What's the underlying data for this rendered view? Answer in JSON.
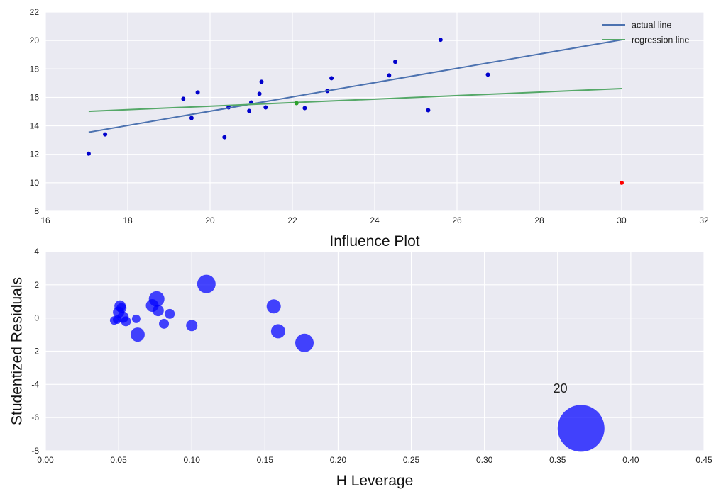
{
  "chart_data": [
    {
      "type": "scatter",
      "title": "",
      "xlabel": "Influence Plot",
      "ylabel": "",
      "xlim": [
        16,
        32
      ],
      "ylim": [
        8,
        22
      ],
      "xticks": [
        16,
        18,
        20,
        22,
        24,
        26,
        28,
        30,
        32
      ],
      "yticks": [
        8,
        10,
        12,
        14,
        16,
        18,
        20,
        22
      ],
      "grid": true,
      "legend_position": "top-right",
      "points": {
        "color": "#0000cc",
        "x": [
          17.05,
          17.45,
          19.35,
          19.55,
          19.7,
          20.35,
          20.45,
          20.95,
          21.0,
          21.2,
          21.25,
          21.35,
          22.3,
          22.85,
          22.95,
          24.35,
          24.5,
          25.3,
          25.6,
          26.75
        ],
        "y": [
          12.05,
          13.4,
          15.9,
          14.55,
          16.35,
          13.2,
          15.3,
          15.05,
          15.65,
          16.25,
          17.1,
          15.3,
          15.25,
          16.45,
          17.35,
          17.55,
          18.5,
          15.1,
          20.05,
          17.6
        ]
      },
      "mean_point": {
        "x": 22.1,
        "y": 15.6,
        "color": "#2ca02c"
      },
      "outlier_point": {
        "x": 30.0,
        "y": 10.0,
        "color": "#ff0000"
      },
      "series": [
        {
          "name": "actual line",
          "color": "#4c72b0",
          "x": [
            17.05,
            30.0
          ],
          "y": [
            13.55,
            20.05
          ]
        },
        {
          "name": "regression line",
          "color": "#55a868",
          "x": [
            17.05,
            30.0
          ],
          "y": [
            15.02,
            16.62
          ]
        }
      ]
    },
    {
      "type": "scatter",
      "title": "",
      "xlabel": "H Leverage",
      "ylabel": "Studentized Residuals",
      "xlim": [
        0.0,
        0.45
      ],
      "ylim": [
        -8,
        4
      ],
      "xticks": [
        "0.00",
        "0.05",
        "0.10",
        "0.15",
        "0.20",
        "0.25",
        "0.30",
        "0.35",
        "0.40",
        "0.45"
      ],
      "yticks": [
        -8,
        -6,
        -4,
        -2,
        0,
        2,
        4
      ],
      "grid": true,
      "bubble_color": "#0000ff",
      "bubbles": {
        "x": [
          0.047,
          0.049,
          0.05,
          0.051,
          0.052,
          0.053,
          0.055,
          0.062,
          0.063,
          0.073,
          0.076,
          0.077,
          0.081,
          0.085,
          0.1,
          0.11,
          0.156,
          0.159,
          0.177,
          0.366
        ],
        "y": [
          -0.15,
          -0.1,
          0.35,
          0.72,
          0.6,
          0.05,
          -0.2,
          -0.05,
          -1.0,
          0.75,
          1.15,
          0.45,
          -0.35,
          0.25,
          -0.45,
          2.05,
          0.7,
          -0.8,
          -1.5,
          -6.65
        ],
        "size": [
          6,
          6,
          8,
          8,
          7,
          8,
          7,
          6,
          10,
          9,
          11,
          8,
          7,
          7,
          8,
          13,
          10,
          10,
          13,
          33
        ]
      },
      "annotations": [
        {
          "text": "20",
          "x": 0.347,
          "y": -4.5
        }
      ]
    }
  ]
}
